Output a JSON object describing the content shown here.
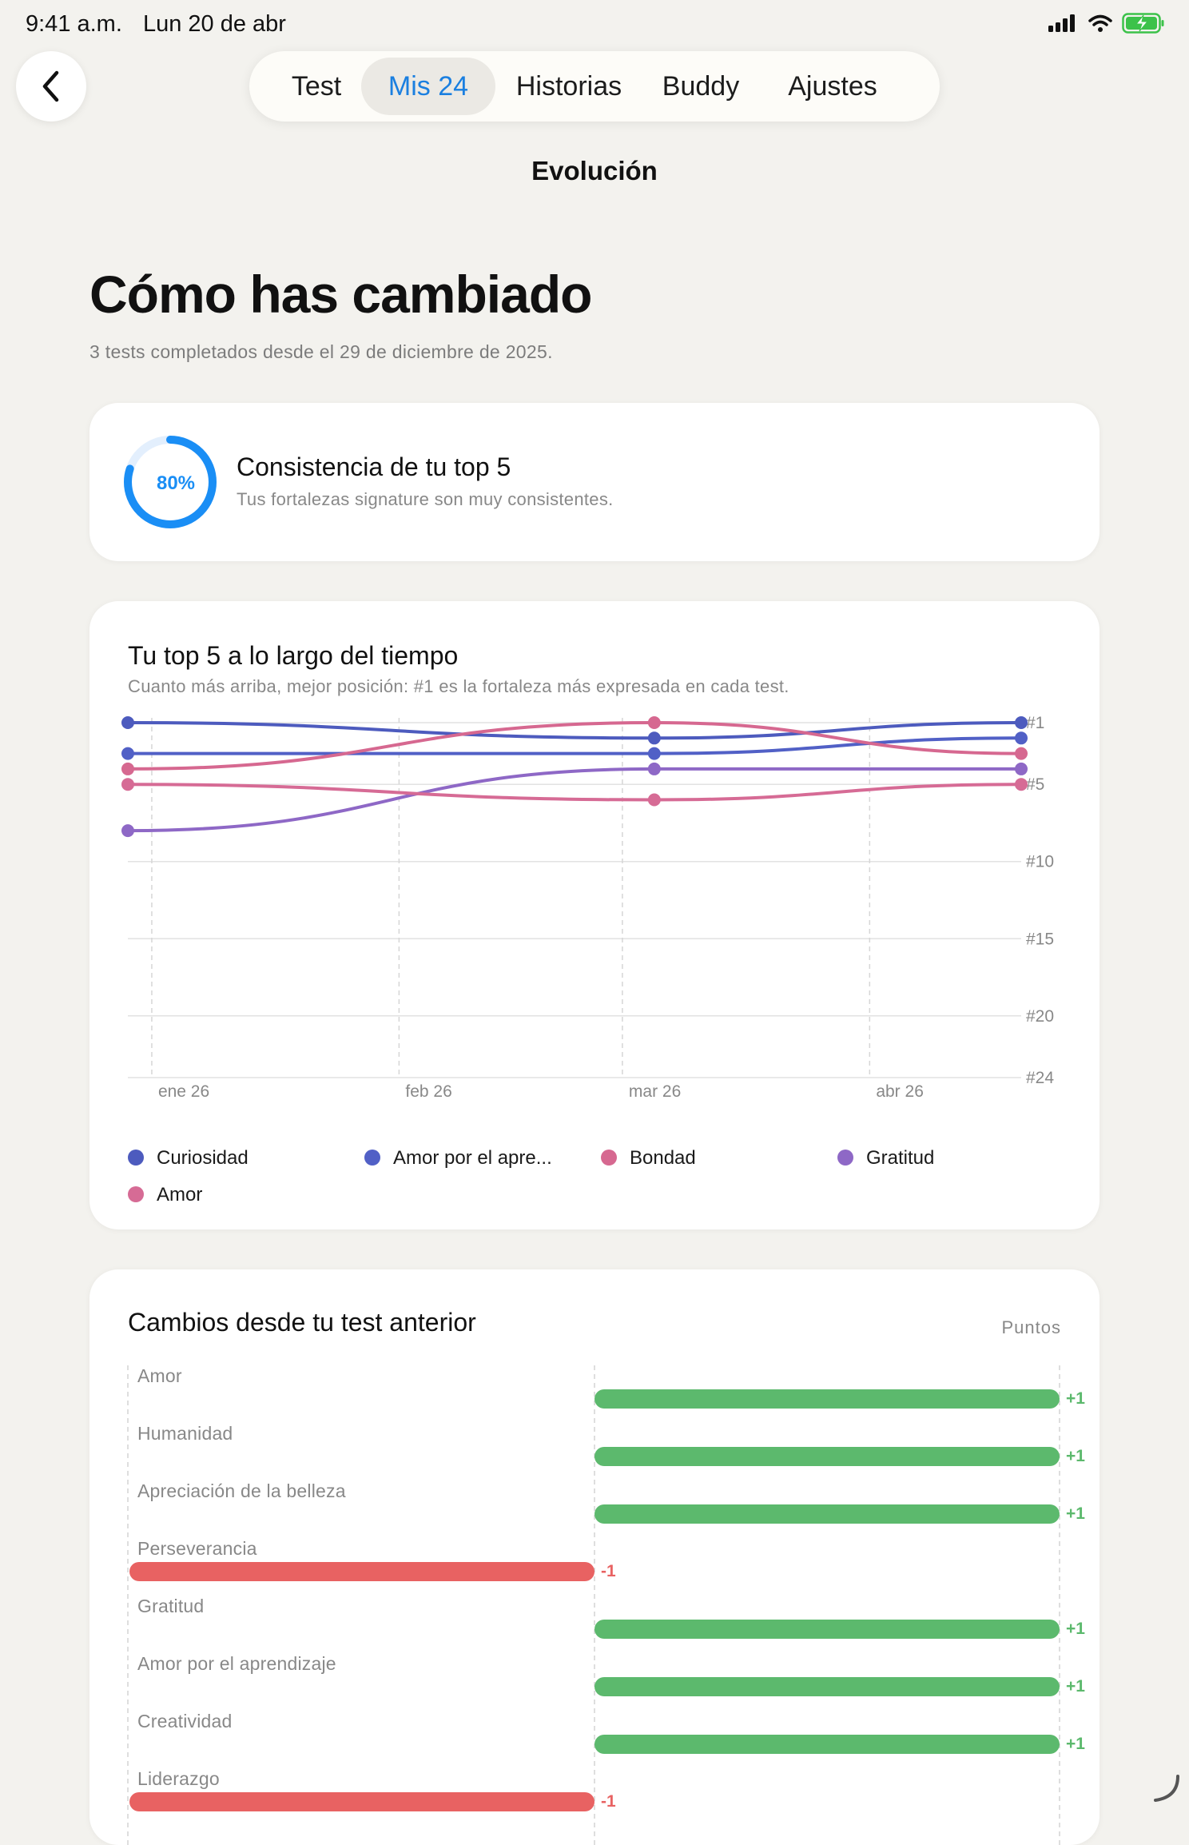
{
  "status_bar": {
    "time": "9:41 a.m.",
    "date": "Lun 20 de abr"
  },
  "nav": {
    "back_icon": "chevron-left-icon",
    "tabs": [
      {
        "label": "Test",
        "active": false
      },
      {
        "label": "Mis 24",
        "active": true
      },
      {
        "label": "Historias",
        "active": false
      },
      {
        "label": "Buddy",
        "active": false
      },
      {
        "label": "Ajustes",
        "active": false
      }
    ],
    "title": "Evolución"
  },
  "header": {
    "title": "Cómo has cambiado",
    "subtitle": "3 tests completados desde el 29 de diciembre de 2025."
  },
  "consistency": {
    "percent": 80,
    "percent_label": "80%",
    "title": "Consistencia de tu top 5",
    "subtitle": "Tus fortalezas signature son muy consistentes.",
    "color": "#1a8ef5"
  },
  "evolution": {
    "title": "Tu top 5 a lo largo del tiempo",
    "subtitle": "Cuanto más arriba, mejor posición: #1 es la fortaleza más expresada en cada test."
  },
  "chart_data": {
    "type": "line",
    "x_labels": [
      "ene 26",
      "feb 26",
      "mar 26",
      "abr 26"
    ],
    "y_ticks": [
      "#1",
      "#5",
      "#10",
      "#15",
      "#20",
      "#24"
    ],
    "y_tick_values": [
      1,
      5,
      10,
      15,
      20,
      24
    ],
    "ylim": [
      1,
      24
    ],
    "y_inverted": true,
    "x_test_dates": [
      "2025-12-29",
      "2026-03-05",
      "2026-04-20"
    ],
    "grid": true,
    "legend_position": "bottom",
    "series": [
      {
        "name": "Curiosidad",
        "color": "#4d5bbe",
        "values": [
          1,
          2,
          1
        ]
      },
      {
        "name": "Amor por el apre...",
        "color": "#5160c6",
        "values": [
          3,
          3,
          2
        ]
      },
      {
        "name": "Bondad",
        "color": "#d66890",
        "values": [
          4,
          1,
          3
        ]
      },
      {
        "name": "Gratitud",
        "color": "#8e68c6",
        "values": [
          8,
          4,
          4
        ]
      },
      {
        "name": "Amor",
        "color": "#d66b95",
        "values": [
          5,
          6,
          5
        ]
      }
    ]
  },
  "changes": {
    "title": "Cambios desde tu test anterior",
    "unit_label": "Puntos",
    "positive_color": "#5cb96d",
    "negative_color": "#e86262",
    "rows": [
      {
        "label": "Amor",
        "value": 1,
        "value_label": "+1"
      },
      {
        "label": "Humanidad",
        "value": 1,
        "value_label": "+1"
      },
      {
        "label": "Apreciación de la belleza",
        "value": 1,
        "value_label": "+1"
      },
      {
        "label": "Perseverancia",
        "value": -1,
        "value_label": "-1"
      },
      {
        "label": "Gratitud",
        "value": 1,
        "value_label": "+1"
      },
      {
        "label": "Amor por el aprendizaje",
        "value": 1,
        "value_label": "+1"
      },
      {
        "label": "Creatividad",
        "value": 1,
        "value_label": "+1"
      },
      {
        "label": "Liderazgo",
        "value": -1,
        "value_label": "-1"
      }
    ]
  }
}
